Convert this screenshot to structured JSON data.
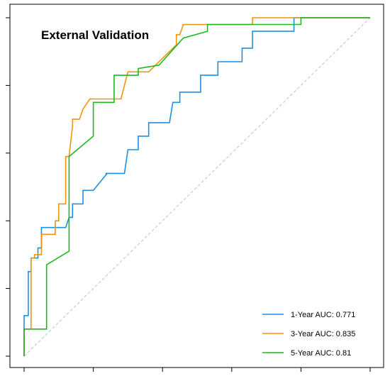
{
  "chart_data": {
    "type": "line",
    "title": "External Validation",
    "xlabel": "",
    "ylabel": "",
    "xlim": [
      0,
      1
    ],
    "ylim": [
      0,
      1
    ],
    "grid": false,
    "legend_position": "bottom-right",
    "reference_line": {
      "style": "dashed",
      "color": "#b8c4c4",
      "from": [
        0,
        0
      ],
      "to": [
        1,
        1
      ]
    },
    "series": [
      {
        "name": "1-Year AUC: 0.771",
        "color": "#1f8fe0",
        "points": [
          [
            0,
            0
          ],
          [
            0,
            0.12
          ],
          [
            0.012,
            0.12
          ],
          [
            0.012,
            0.25
          ],
          [
            0.02,
            0.25
          ],
          [
            0.02,
            0.29
          ],
          [
            0.04,
            0.29
          ],
          [
            0.04,
            0.32
          ],
          [
            0.05,
            0.32
          ],
          [
            0.05,
            0.38
          ],
          [
            0.12,
            0.38
          ],
          [
            0.13,
            0.41
          ],
          [
            0.14,
            0.41
          ],
          [
            0.14,
            0.45
          ],
          [
            0.17,
            0.45
          ],
          [
            0.17,
            0.49
          ],
          [
            0.2,
            0.49
          ],
          [
            0.24,
            0.54
          ],
          [
            0.235,
            0.54
          ],
          [
            0.29,
            0.54
          ],
          [
            0.3,
            0.61
          ],
          [
            0.33,
            0.61
          ],
          [
            0.33,
            0.65
          ],
          [
            0.36,
            0.65
          ],
          [
            0.36,
            0.69
          ],
          [
            0.42,
            0.69
          ],
          [
            0.43,
            0.75
          ],
          [
            0.45,
            0.75
          ],
          [
            0.45,
            0.78
          ],
          [
            0.51,
            0.78
          ],
          [
            0.51,
            0.83
          ],
          [
            0.56,
            0.83
          ],
          [
            0.56,
            0.87
          ],
          [
            0.63,
            0.87
          ],
          [
            0.63,
            0.91
          ],
          [
            0.66,
            0.91
          ],
          [
            0.66,
            0.96
          ],
          [
            0.78,
            0.96
          ],
          [
            0.78,
            1.0
          ],
          [
            1.0,
            1.0
          ]
        ]
      },
      {
        "name": "3-Year AUC: 0.835",
        "color": "#f0930f",
        "points": [
          [
            0,
            0
          ],
          [
            0,
            0.08
          ],
          [
            0.02,
            0.08
          ],
          [
            0.02,
            0.29
          ],
          [
            0.03,
            0.29
          ],
          [
            0.03,
            0.3
          ],
          [
            0.05,
            0.3
          ],
          [
            0.05,
            0.36
          ],
          [
            0.09,
            0.36
          ],
          [
            0.09,
            0.4
          ],
          [
            0.1,
            0.4
          ],
          [
            0.1,
            0.45
          ],
          [
            0.12,
            0.45
          ],
          [
            0.12,
            0.59
          ],
          [
            0.13,
            0.59
          ],
          [
            0.14,
            0.68
          ],
          [
            0.14,
            0.7
          ],
          [
            0.16,
            0.7
          ],
          [
            0.17,
            0.73
          ],
          [
            0.19,
            0.76
          ],
          [
            0.28,
            0.76
          ],
          [
            0.3,
            0.84
          ],
          [
            0.36,
            0.84
          ],
          [
            0.44,
            0.92
          ],
          [
            0.44,
            0.95
          ],
          [
            0.45,
            0.95
          ],
          [
            0.46,
            0.98
          ],
          [
            0.66,
            0.98
          ],
          [
            0.66,
            1.0
          ],
          [
            1.0,
            1.0
          ]
        ]
      },
      {
        "name": "5-Year AUC: 0.81",
        "color": "#1fb81f",
        "points": [
          [
            0,
            0
          ],
          [
            0,
            0.08
          ],
          [
            0.065,
            0.08
          ],
          [
            0.065,
            0.27
          ],
          [
            0.13,
            0.31
          ],
          [
            0.13,
            0.59
          ],
          [
            0.2,
            0.65
          ],
          [
            0.2,
            0.75
          ],
          [
            0.26,
            0.75
          ],
          [
            0.26,
            0.83
          ],
          [
            0.33,
            0.83
          ],
          [
            0.33,
            0.85
          ],
          [
            0.39,
            0.86
          ],
          [
            0.46,
            0.94
          ],
          [
            0.53,
            0.96
          ],
          [
            0.53,
            0.98
          ],
          [
            0.8,
            0.98
          ],
          [
            0.8,
            1.0
          ],
          [
            1.0,
            1.0
          ]
        ]
      }
    ]
  }
}
